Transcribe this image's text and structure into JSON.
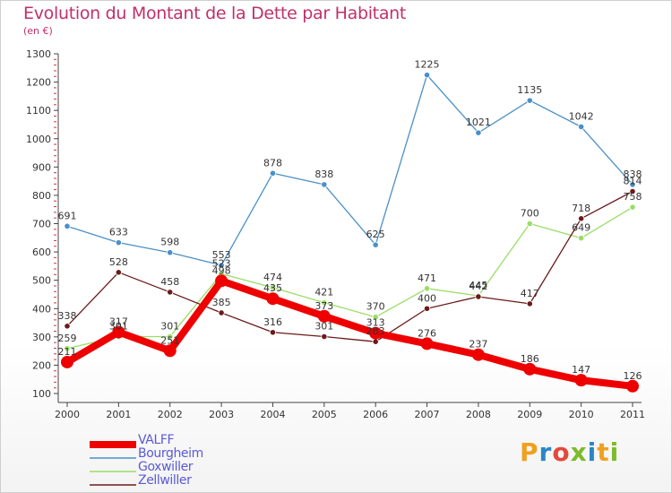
{
  "header": {
    "title": "Evolution du Montant de la Dette par Habitant",
    "subtitle": "(en €)"
  },
  "brand": {
    "name": "Proxiti",
    "letter_colors": [
      "#f0a020",
      "#2a86c8",
      "#e24a3b",
      "#7dbb2a",
      "#2a86c8",
      "#f0a020",
      "#7dbb2a"
    ]
  },
  "chart_data": {
    "type": "line",
    "title": "Evolution du Montant de la Dette par Habitant",
    "subtitle": "(en €)",
    "x": [
      "2000",
      "2001",
      "2002",
      "2003",
      "2004",
      "2005",
      "2006",
      "2007",
      "2008",
      "2009",
      "2010",
      "2011"
    ],
    "ylim": [
      100,
      1300
    ],
    "yticks": [
      100,
      200,
      300,
      400,
      500,
      600,
      700,
      800,
      900,
      1000,
      1100,
      1200,
      1300
    ],
    "grid": false,
    "legend_position": "bottom-left",
    "series": [
      {
        "name": "VALFF",
        "color": "#ee0000",
        "values": [
          211,
          317,
          251,
          498,
          435,
          373,
          313,
          276,
          237,
          186,
          147,
          126
        ],
        "labels": [
          "211",
          "317",
          "251",
          "498",
          "435",
          "373",
          "313",
          "276",
          "237",
          "186",
          "147",
          "126"
        ]
      },
      {
        "name": "Bourgheim",
        "color": "#4a90c8",
        "values": [
          691,
          633,
          598,
          553,
          878,
          838,
          625,
          1225,
          1021,
          1135,
          1042,
          838
        ],
        "labels": [
          "691",
          "633",
          "598",
          "553",
          "878",
          "838",
          "625",
          "1225",
          "1021",
          "1135",
          "1042",
          "838"
        ]
      },
      {
        "name": "Goxwiller",
        "color": "#99dd66",
        "values": [
          259,
          301,
          301,
          523,
          474,
          421,
          370,
          471,
          445,
          700,
          649,
          758
        ],
        "labels": [
          "259",
          "301",
          "301",
          "523",
          "474",
          "421",
          "370",
          "471",
          "445",
          "700",
          "649",
          "758"
        ]
      },
      {
        "name": "Zellwiller",
        "color": "#6b1a1a",
        "values": [
          338,
          528,
          458,
          385,
          316,
          301,
          283,
          400,
          442,
          417,
          718,
          814
        ],
        "labels": [
          "338",
          "528",
          "458",
          "385",
          "316",
          "301",
          "283",
          "400",
          "442",
          "417",
          "718",
          "814"
        ]
      }
    ]
  }
}
